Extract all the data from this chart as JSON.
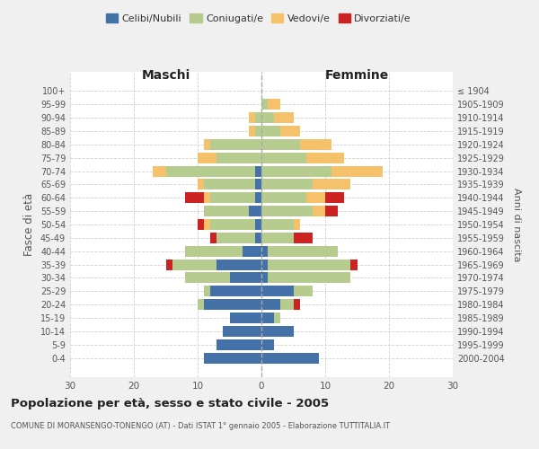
{
  "age_groups": [
    "0-4",
    "5-9",
    "10-14",
    "15-19",
    "20-24",
    "25-29",
    "30-34",
    "35-39",
    "40-44",
    "45-49",
    "50-54",
    "55-59",
    "60-64",
    "65-69",
    "70-74",
    "75-79",
    "80-84",
    "85-89",
    "90-94",
    "95-99",
    "100+"
  ],
  "birth_years": [
    "2000-2004",
    "1995-1999",
    "1990-1994",
    "1985-1989",
    "1980-1984",
    "1975-1979",
    "1970-1974",
    "1965-1969",
    "1960-1964",
    "1955-1959",
    "1950-1954",
    "1945-1949",
    "1940-1944",
    "1935-1939",
    "1930-1934",
    "1925-1929",
    "1920-1924",
    "1915-1919",
    "1910-1914",
    "1905-1909",
    "≤ 1904"
  ],
  "males": {
    "celibe": [
      9,
      7,
      6,
      5,
      9,
      8,
      5,
      7,
      3,
      1,
      1,
      2,
      1,
      1,
      1,
      0,
      0,
      0,
      0,
      0,
      0
    ],
    "coniugato": [
      0,
      0,
      0,
      0,
      1,
      1,
      7,
      7,
      9,
      6,
      7,
      7,
      7,
      8,
      14,
      7,
      8,
      1,
      1,
      0,
      0
    ],
    "vedovo": [
      0,
      0,
      0,
      0,
      0,
      0,
      0,
      0,
      0,
      0,
      1,
      0,
      1,
      1,
      2,
      3,
      1,
      1,
      1,
      0,
      0
    ],
    "divorziato": [
      0,
      0,
      0,
      0,
      0,
      0,
      0,
      1,
      0,
      1,
      1,
      0,
      3,
      0,
      0,
      0,
      0,
      0,
      0,
      0,
      0
    ]
  },
  "females": {
    "nubile": [
      9,
      2,
      5,
      2,
      3,
      5,
      1,
      1,
      1,
      0,
      0,
      0,
      0,
      0,
      0,
      0,
      0,
      0,
      0,
      0,
      0
    ],
    "coniugata": [
      0,
      0,
      0,
      1,
      2,
      3,
      13,
      13,
      11,
      5,
      5,
      8,
      7,
      8,
      11,
      7,
      6,
      3,
      2,
      1,
      0
    ],
    "vedova": [
      0,
      0,
      0,
      0,
      0,
      0,
      0,
      0,
      0,
      0,
      1,
      2,
      3,
      6,
      8,
      6,
      5,
      3,
      3,
      2,
      0
    ],
    "divorziata": [
      0,
      0,
      0,
      0,
      1,
      0,
      0,
      1,
      0,
      3,
      0,
      2,
      3,
      0,
      0,
      0,
      0,
      0,
      0,
      0,
      0
    ]
  },
  "colors": {
    "celibe_nubile": "#4472a8",
    "coniugato": "#b5cc8e",
    "vedovo": "#f5c26b",
    "divorziato": "#cc2222"
  },
  "title": "Popolazione per età, sesso e stato civile - 2005",
  "subtitle": "COMUNE DI MORANSENGO-TONENGO (AT) - Dati ISTAT 1° gennaio 2005 - Elaborazione TUTTITALIA.IT",
  "xlabel_left": "Maschi",
  "xlabel_right": "Femmine",
  "ylabel_left": "Fasce di età",
  "ylabel_right": "Anni di nascita",
  "xlim": 30,
  "bg_color": "#f0f0f0",
  "plot_bg": "#ffffff",
  "grid_color": "#cccccc"
}
